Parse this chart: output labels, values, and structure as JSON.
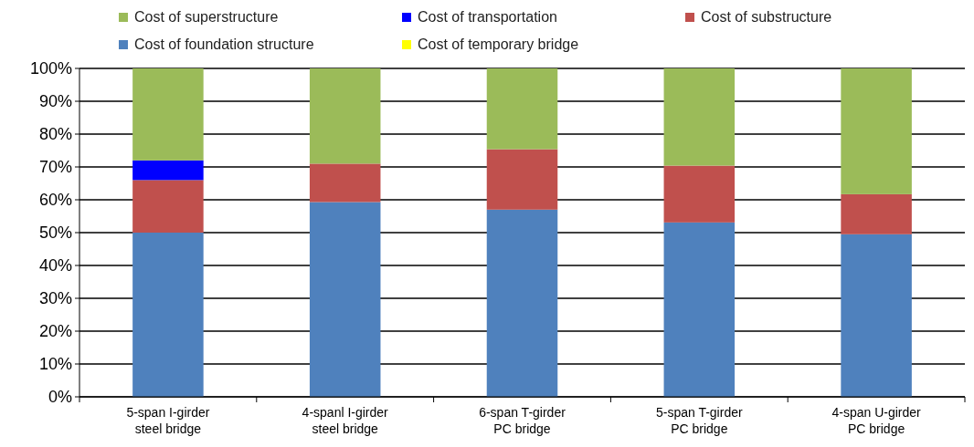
{
  "chart_data": {
    "type": "bar",
    "stacked": true,
    "categories": [
      "5-span  I-girder\nsteel bridge",
      "4-spanl I-girder\nsteel bridge",
      "6-span T-girder\nPC bridge",
      "5-span T-girder\nPC bridge",
      "4-span U-girder\nPC bridge"
    ],
    "series": [
      {
        "name": "Cost of foundation structure",
        "color": "#4f81bd",
        "values": [
          50,
          59.3,
          57,
          53.1,
          49.5
        ]
      },
      {
        "name": "Cost of substructure",
        "color": "#c0504d",
        "values": [
          16,
          11.7,
          18.4,
          17.3,
          12.2
        ]
      },
      {
        "name": "Cost of transportation",
        "color": "#0000ff",
        "values": [
          6,
          0,
          0,
          0,
          0
        ]
      },
      {
        "name": "Cost of temporary bridge",
        "color": "#ffff00",
        "values": [
          0,
          0,
          0,
          0,
          0
        ]
      },
      {
        "name": "Cost of superstructure",
        "color": "#9bbb59",
        "values": [
          28,
          29,
          24.6,
          29.6,
          38.3
        ]
      }
    ],
    "ylim": [
      0,
      100
    ],
    "yticks": [
      {
        "value": 0,
        "label": "0%"
      },
      {
        "value": 10,
        "label": "10%"
      },
      {
        "value": 20,
        "label": "20%"
      },
      {
        "value": 30,
        "label": "30%"
      },
      {
        "value": 40,
        "label": "40%"
      },
      {
        "value": 50,
        "label": "50%"
      },
      {
        "value": 60,
        "label": "60%"
      },
      {
        "value": 70,
        "label": "70%"
      },
      {
        "value": 80,
        "label": "80%"
      },
      {
        "value": 90,
        "label": "90%"
      },
      {
        "value": 100,
        "label": "100%"
      }
    ],
    "grid": "y",
    "legend": "top"
  }
}
